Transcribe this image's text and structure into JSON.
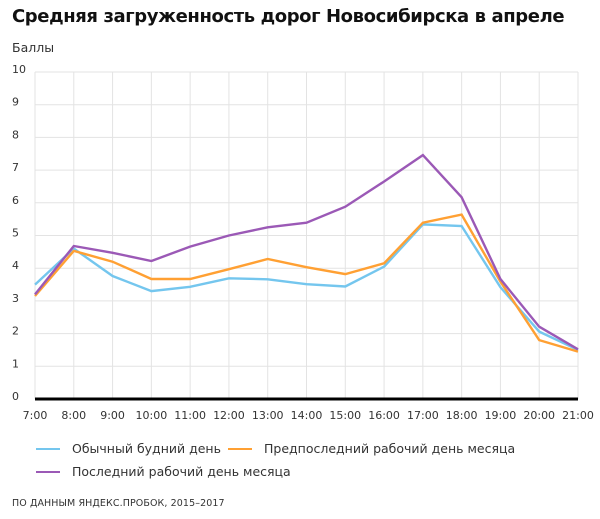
{
  "header": {
    "title": "Средняя загруженность дорог Новосибирска в апреле",
    "y_unit_label": "Баллы"
  },
  "legend": {
    "items": [
      {
        "label": "Обычный будний день",
        "color": "#74c6ee"
      },
      {
        "label": "Предпоследний рабочий день месяца",
        "color": "#ffa033"
      },
      {
        "label": "Последний рабочий день месяца",
        "color": "#9b59b6"
      }
    ]
  },
  "footer": {
    "source": "ПО ДАННЫМ ЯНДЕКС.ПРОБОК, 2015–2017"
  },
  "chart_data": {
    "type": "line",
    "title": "Средняя загруженность дорог Новосибирска в апреле",
    "xlabel": "",
    "ylabel": "Баллы",
    "ylim": [
      0,
      10
    ],
    "yticks": [
      0,
      1,
      2,
      3,
      4,
      5,
      6,
      7,
      8,
      9,
      10
    ],
    "grid": true,
    "legend_position": "bottom",
    "categories": [
      "7:00",
      "8:00",
      "9:00",
      "10:00",
      "11:00",
      "12:00",
      "13:00",
      "14:00",
      "15:00",
      "16:00",
      "17:00",
      "18:00",
      "19:00",
      "20:00",
      "21:00"
    ],
    "series": [
      {
        "name": "Обычный будний день",
        "color": "#74c6ee",
        "values": [
          3.5,
          4.6,
          3.76,
          3.3,
          3.43,
          3.69,
          3.66,
          3.51,
          3.44,
          4.05,
          5.34,
          5.29,
          3.42,
          2.06,
          1.5
        ]
      },
      {
        "name": "Предпоследний рабочий день месяца",
        "color": "#ffa033",
        "values": [
          3.15,
          4.53,
          4.2,
          3.67,
          3.67,
          3.97,
          4.28,
          4.03,
          3.82,
          4.15,
          5.39,
          5.64,
          3.59,
          1.8,
          1.45
        ]
      },
      {
        "name": "Последний рабочий день месяца",
        "color": "#9b59b6",
        "values": [
          3.2,
          4.68,
          4.47,
          4.22,
          4.66,
          5.0,
          5.25,
          5.39,
          5.88,
          6.65,
          7.46,
          6.17,
          3.67,
          2.21,
          1.52
        ]
      }
    ],
    "source": "ПО ДАННЫМ ЯНДЕКС.ПРОБОК, 2015–2017"
  }
}
